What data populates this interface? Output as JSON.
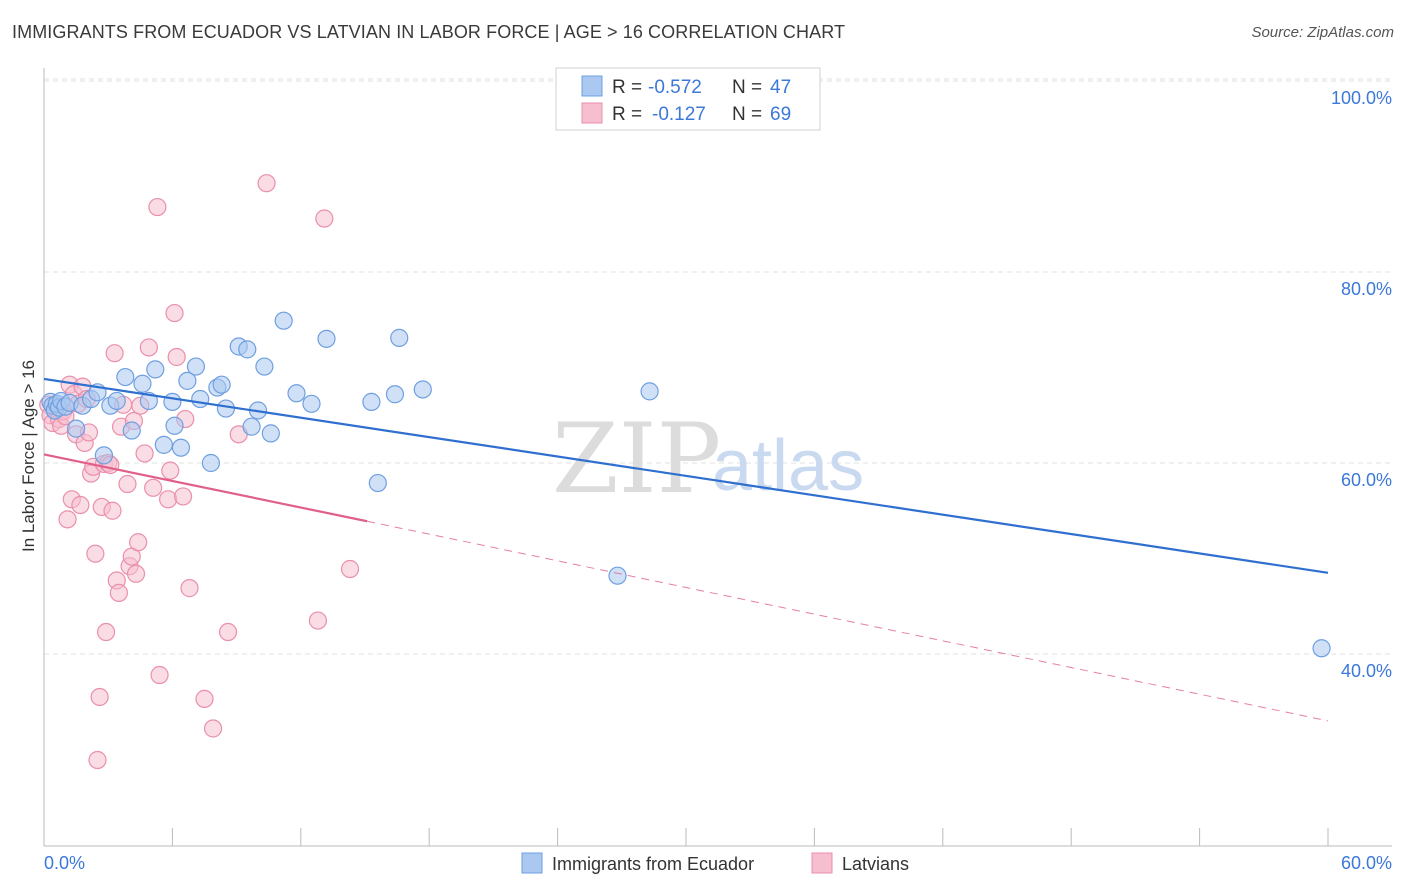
{
  "header": {
    "title": "IMMIGRANTS FROM ECUADOR VS LATVIAN IN LABOR FORCE | AGE > 16 CORRELATION CHART",
    "source": "Source: ZipAtlas.com"
  },
  "watermark": {
    "zip": "ZIP",
    "atlas": "atlas"
  },
  "legend": {
    "series": [
      {
        "r_label": "R =",
        "r_value": "-0.572",
        "n_label": "N =",
        "n_value": "47"
      },
      {
        "r_label": "R =",
        "r_value": "-0.127",
        "n_label": "N =",
        "n_value": "69"
      }
    ]
  },
  "colors": {
    "blue_fill": "#aac8f0",
    "blue_stroke": "#6f9fe0",
    "blue_line": "#2f6fd0",
    "pink_fill": "#f6bfd0",
    "pink_stroke": "#ea8fac",
    "pink_line": "#e0608a",
    "tick_text": "#3c78d8",
    "grid": "#e2e2e2"
  },
  "chart_data": {
    "type": "scatter",
    "ylabel": "In Labor Force | Age > 16",
    "xlim": [
      0,
      60
    ],
    "ylim": [
      22,
      106
    ],
    "x_tick_labels": [
      "0.0%",
      "60.0%"
    ],
    "y_ticks": [
      40,
      60,
      80,
      100
    ],
    "y_tick_labels": [
      "40.0%",
      "60.0%",
      "80.0%",
      "100.0%"
    ],
    "grid": true,
    "legend_position": "top-center",
    "series": [
      {
        "name": "Immigrants from Ecuador",
        "color": "#aac8f0",
        "trend": {
          "x0": 0,
          "y0": 68.8,
          "x1": 60,
          "y1": 48.5,
          "dashed_to": null
        },
        "points": [
          [
            0.3,
            66.4
          ],
          [
            0.4,
            66.0
          ],
          [
            0.5,
            65.5
          ],
          [
            0.6,
            66.2
          ],
          [
            0.7,
            65.8
          ],
          [
            0.8,
            66.5
          ],
          [
            1.0,
            65.9
          ],
          [
            1.2,
            66.3
          ],
          [
            1.5,
            63.6
          ],
          [
            1.8,
            66.0
          ],
          [
            2.2,
            66.7
          ],
          [
            2.5,
            67.4
          ],
          [
            2.8,
            60.8
          ],
          [
            3.1,
            66.0
          ],
          [
            3.4,
            66.5
          ],
          [
            3.8,
            69.0
          ],
          [
            4.1,
            63.4
          ],
          [
            4.6,
            68.3
          ],
          [
            4.9,
            66.5
          ],
          [
            5.2,
            69.8
          ],
          [
            5.6,
            61.9
          ],
          [
            6.0,
            66.4
          ],
          [
            6.1,
            63.9
          ],
          [
            6.4,
            61.6
          ],
          [
            6.7,
            68.6
          ],
          [
            7.1,
            70.1
          ],
          [
            7.3,
            66.7
          ],
          [
            7.8,
            60.0
          ],
          [
            8.1,
            67.9
          ],
          [
            8.3,
            68.2
          ],
          [
            8.5,
            65.7
          ],
          [
            9.1,
            72.2
          ],
          [
            9.5,
            71.9
          ],
          [
            9.7,
            63.8
          ],
          [
            10.0,
            65.5
          ],
          [
            10.3,
            70.1
          ],
          [
            10.6,
            63.1
          ],
          [
            11.2,
            74.9
          ],
          [
            11.8,
            67.3
          ],
          [
            12.5,
            66.2
          ],
          [
            13.2,
            73.0
          ],
          [
            15.3,
            66.4
          ],
          [
            15.6,
            57.9
          ],
          [
            16.4,
            67.2
          ],
          [
            16.6,
            73.1
          ],
          [
            17.7,
            67.7
          ],
          [
            28.3,
            67.5
          ],
          [
            26.8,
            48.2
          ],
          [
            59.7,
            40.6
          ]
        ]
      },
      {
        "name": "Latvians",
        "color": "#f6bfd0",
        "trend": {
          "x0": 0,
          "y0": 60.9,
          "x1": 15.1,
          "y1": 53.9,
          "dashed_to": [
            60,
            33
          ]
        },
        "points": [
          [
            0.2,
            66.1
          ],
          [
            0.3,
            65.0
          ],
          [
            0.4,
            64.2
          ],
          [
            0.5,
            65.7
          ],
          [
            0.6,
            66.0
          ],
          [
            0.7,
            64.6
          ],
          [
            0.8,
            63.9
          ],
          [
            0.9,
            65.4
          ],
          [
            1.0,
            64.9
          ],
          [
            1.1,
            54.1
          ],
          [
            1.2,
            68.2
          ],
          [
            1.3,
            56.2
          ],
          [
            1.4,
            67.2
          ],
          [
            1.5,
            63.0
          ],
          [
            1.6,
            66.2
          ],
          [
            1.7,
            55.6
          ],
          [
            1.8,
            68.0
          ],
          [
            1.9,
            62.1
          ],
          [
            2.0,
            66.7
          ],
          [
            2.1,
            63.2
          ],
          [
            2.2,
            58.9
          ],
          [
            2.3,
            59.6
          ],
          [
            2.4,
            50.5
          ],
          [
            2.5,
            28.9
          ],
          [
            2.6,
            35.5
          ],
          [
            2.7,
            55.4
          ],
          [
            2.8,
            59.9
          ],
          [
            2.9,
            42.3
          ],
          [
            3.0,
            60.0
          ],
          [
            3.1,
            59.8
          ],
          [
            3.2,
            55.0
          ],
          [
            3.3,
            71.5
          ],
          [
            3.4,
            47.7
          ],
          [
            3.5,
            46.4
          ],
          [
            3.6,
            63.8
          ],
          [
            3.7,
            66.1
          ],
          [
            3.9,
            57.8
          ],
          [
            4.0,
            49.2
          ],
          [
            4.1,
            50.2
          ],
          [
            4.2,
            64.4
          ],
          [
            4.3,
            48.4
          ],
          [
            4.4,
            51.7
          ],
          [
            4.5,
            66.0
          ],
          [
            4.7,
            61.0
          ],
          [
            4.9,
            72.1
          ],
          [
            5.1,
            57.4
          ],
          [
            5.3,
            86.8
          ],
          [
            5.4,
            37.8
          ],
          [
            5.8,
            56.2
          ],
          [
            5.9,
            59.2
          ],
          [
            6.1,
            75.7
          ],
          [
            6.2,
            71.1
          ],
          [
            6.5,
            56.5
          ],
          [
            6.6,
            64.6
          ],
          [
            6.8,
            46.9
          ],
          [
            7.5,
            35.3
          ],
          [
            7.9,
            32.2
          ],
          [
            8.6,
            42.3
          ],
          [
            9.1,
            63.0
          ],
          [
            10.4,
            89.3
          ],
          [
            12.8,
            43.5
          ],
          [
            13.1,
            85.6
          ],
          [
            14.3,
            48.9
          ]
        ]
      }
    ]
  }
}
